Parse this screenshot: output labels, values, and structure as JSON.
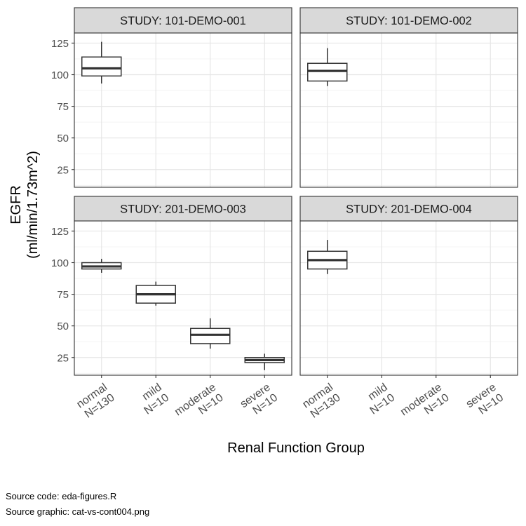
{
  "chart_data": {
    "type": "boxplot",
    "xlabel": "Renal Function Group",
    "ylabel_lines": [
      "EGFR",
      "(ml/min/1.73m^2)"
    ],
    "ylim": [
      11,
      133
    ],
    "yticks": [
      25,
      50,
      75,
      100,
      125
    ],
    "grid": true,
    "categories": [
      {
        "name": "normal",
        "n": "N=130"
      },
      {
        "name": "mild",
        "n": "N=10"
      },
      {
        "name": "moderate",
        "n": "N=10"
      },
      {
        "name": "severe",
        "n": "N=10"
      }
    ],
    "panels": [
      {
        "title": "STUDY: 101-DEMO-001",
        "boxes": [
          {
            "category": "normal",
            "whisker_low": 93,
            "q1": 99,
            "median": 105,
            "q3": 114,
            "whisker_high": 126
          }
        ]
      },
      {
        "title": "STUDY: 101-DEMO-002",
        "boxes": [
          {
            "category": "normal",
            "whisker_low": 91,
            "q1": 95,
            "median": 103,
            "q3": 109,
            "whisker_high": 121
          }
        ]
      },
      {
        "title": "STUDY: 201-DEMO-003",
        "boxes": [
          {
            "category": "normal",
            "whisker_low": 92,
            "q1": 95,
            "median": 97,
            "q3": 100,
            "whisker_high": 103
          },
          {
            "category": "mild",
            "whisker_low": 66,
            "q1": 68,
            "median": 75,
            "q3": 82,
            "whisker_high": 85
          },
          {
            "category": "moderate",
            "whisker_low": 32,
            "q1": 36,
            "median": 43,
            "q3": 48,
            "whisker_high": 56
          },
          {
            "category": "severe",
            "whisker_low": 15,
            "q1": 21,
            "median": 23,
            "q3": 25,
            "whisker_high": 28
          }
        ]
      },
      {
        "title": "STUDY: 201-DEMO-004",
        "boxes": [
          {
            "category": "normal",
            "whisker_low": 91,
            "q1": 95,
            "median": 102,
            "q3": 109,
            "whisker_high": 118
          }
        ]
      }
    ]
  },
  "captions": {
    "source_code": "Source code: eda-figures.R",
    "source_graphic": "Source graphic: cat-vs-cont004.png"
  }
}
